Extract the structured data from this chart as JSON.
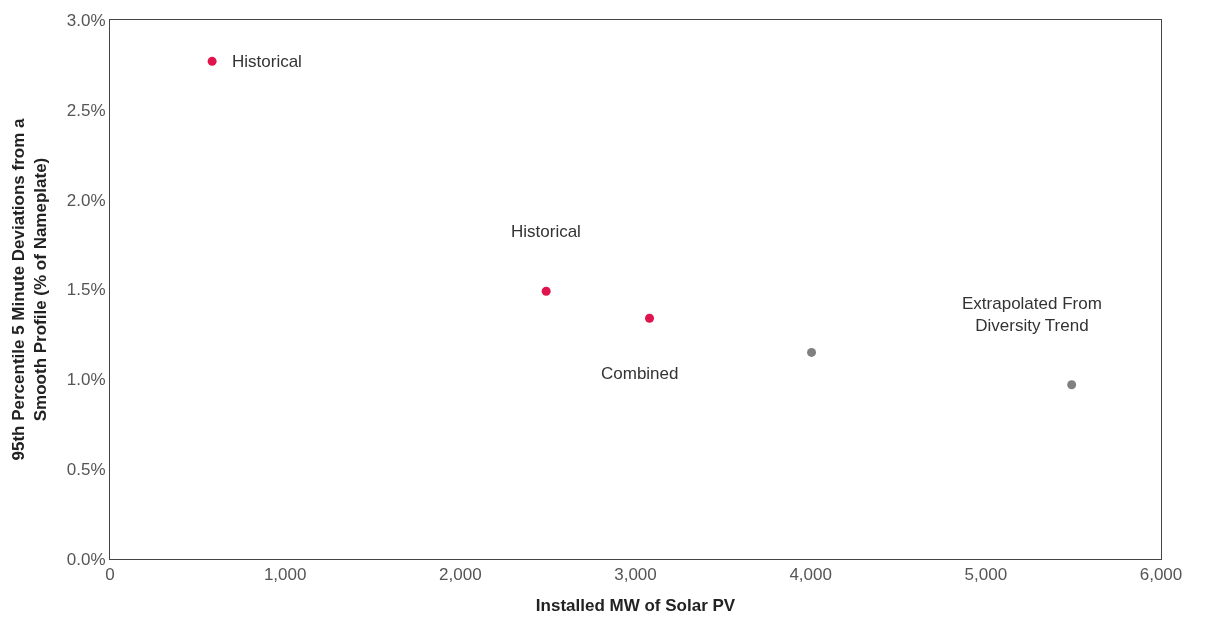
{
  "chart_data": {
    "type": "scatter",
    "xlabel": "Installed MW of Solar PV",
    "ylabel": "95th Percentile 5 Minute Deviations from a Smooth Profile (% of Nameplate)",
    "series": [
      {
        "color": "#e0144c",
        "x": [
          583,
          2490,
          3080
        ],
        "values": [
          2.77,
          1.49,
          1.34
        ]
      },
      {
        "color": "#808080",
        "x": [
          4005,
          5490
        ],
        "values": [
          1.15,
          0.97
        ]
      }
    ],
    "xlim": [
      0,
      6000
    ],
    "xticks": [
      {
        "value": 0,
        "label": "0"
      },
      {
        "value": 1000,
        "label": "1,000"
      },
      {
        "value": 2000,
        "label": "2,000"
      },
      {
        "value": 3000,
        "label": "3,000"
      },
      {
        "value": 4000,
        "label": "4,000"
      },
      {
        "value": 5000,
        "label": "5,000"
      },
      {
        "value": 6000,
        "label": "6,000"
      }
    ],
    "ylim": [
      0,
      3
    ],
    "yticks": [
      {
        "value": 0,
        "label": "0.0%"
      },
      {
        "value": 0.5,
        "label": "0.5%"
      },
      {
        "value": 1,
        "label": "1.0%"
      },
      {
        "value": 1.5,
        "label": "1.5%"
      },
      {
        "value": 2,
        "label": "2.0%"
      },
      {
        "value": 2.5,
        "label": "2.5%"
      },
      {
        "value": 3,
        "label": "3.0%"
      }
    ],
    "marker": "circle",
    "annotations": [
      {
        "text": "Historical",
        "x": 583,
        "y": 2.77
      },
      {
        "text": "Historical",
        "x": 2490,
        "y": 1.49
      },
      {
        "text": "Combined",
        "x": 3080,
        "y": 1.34
      },
      {
        "text": "Extrapolated From Diversity Trend",
        "x": 5490,
        "y": 0.97
      }
    ]
  }
}
